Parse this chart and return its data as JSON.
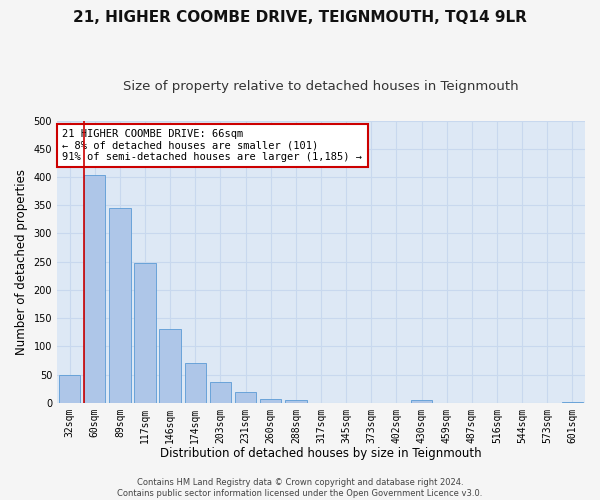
{
  "title": "21, HIGHER COOMBE DRIVE, TEIGNMOUTH, TQ14 9LR",
  "subtitle": "Size of property relative to detached houses in Teignmouth",
  "xlabel": "Distribution of detached houses by size in Teignmouth",
  "ylabel": "Number of detached properties",
  "bar_labels": [
    "32sqm",
    "60sqm",
    "89sqm",
    "117sqm",
    "146sqm",
    "174sqm",
    "203sqm",
    "231sqm",
    "260sqm",
    "288sqm",
    "317sqm",
    "345sqm",
    "373sqm",
    "402sqm",
    "430sqm",
    "459sqm",
    "487sqm",
    "516sqm",
    "544sqm",
    "573sqm",
    "601sqm"
  ],
  "bar_values": [
    50,
    403,
    345,
    247,
    130,
    71,
    36,
    19,
    6,
    5,
    0,
    0,
    0,
    0,
    5,
    0,
    0,
    0,
    0,
    0,
    2
  ],
  "bar_color": "#aec6e8",
  "bar_edge_color": "#5b9bd5",
  "vline_color": "#cc0000",
  "annotation_text": "21 HIGHER COOMBE DRIVE: 66sqm\n← 8% of detached houses are smaller (101)\n91% of semi-detached houses are larger (1,185) →",
  "annotation_box_color": "#ffffff",
  "annotation_box_edge": "#cc0000",
  "ylim": [
    0,
    500
  ],
  "yticks": [
    0,
    50,
    100,
    150,
    200,
    250,
    300,
    350,
    400,
    450,
    500
  ],
  "fig_bg_color": "#f5f5f5",
  "background_color": "#dde8f5",
  "grid_color": "#c8d8ee",
  "footer": "Contains HM Land Registry data © Crown copyright and database right 2024.\nContains public sector information licensed under the Open Government Licence v3.0.",
  "title_fontsize": 11,
  "subtitle_fontsize": 9.5,
  "xlabel_fontsize": 8.5,
  "ylabel_fontsize": 8.5,
  "tick_fontsize": 7,
  "annotation_fontsize": 7.5,
  "footer_fontsize": 6
}
